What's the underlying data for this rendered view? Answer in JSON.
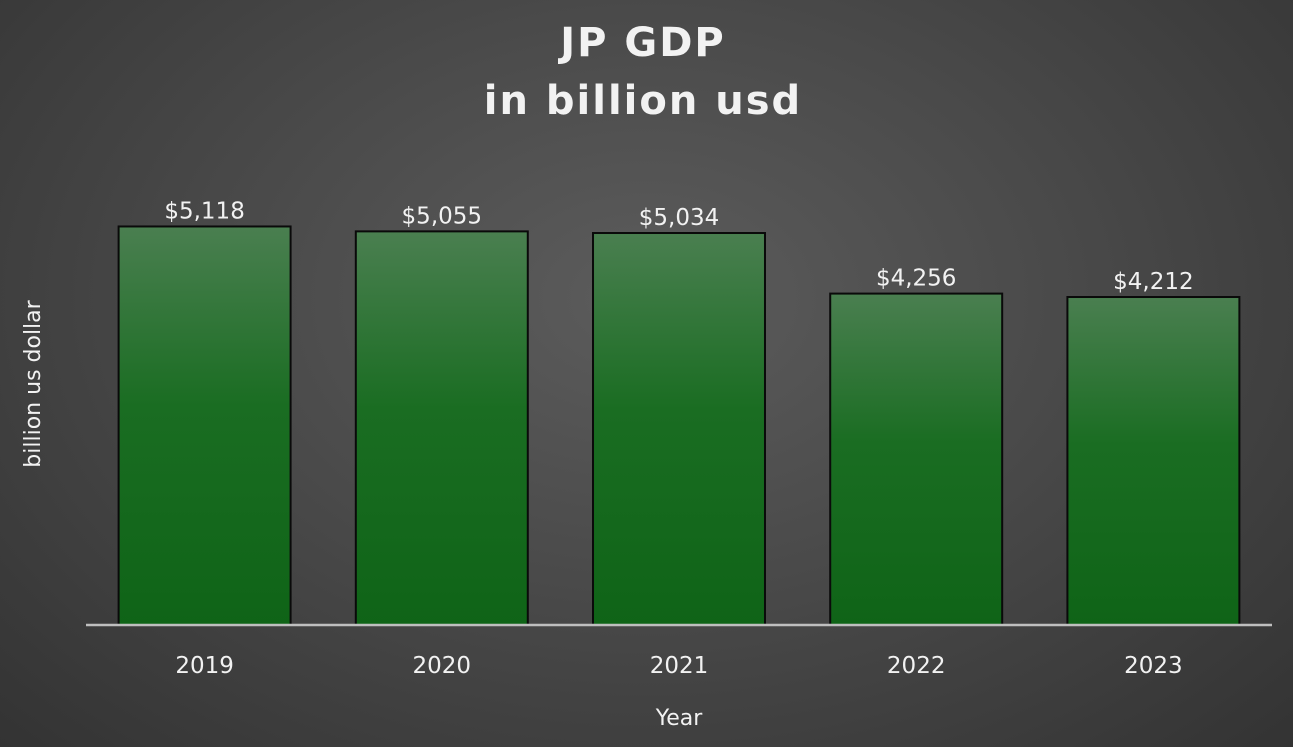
{
  "chart_data": {
    "type": "bar",
    "title": "JP GDP",
    "subtitle": "in billion usd",
    "xlabel": "Year",
    "ylabel": "billion us dollar",
    "categories": [
      "2019",
      "2020",
      "2021",
      "2022",
      "2023"
    ],
    "values": [
      5118,
      5055,
      5034,
      4256,
      4212
    ],
    "data_labels": [
      "$5,118",
      "$5,055",
      "$5,034",
      "$4,256",
      "$4,212"
    ],
    "ylim": [
      0,
      6100
    ],
    "grid": false,
    "legend": "none",
    "colors": {
      "bar_top": "#4a7f50",
      "bar_bottom": "#0f6417",
      "bar_border": "#0a0a0a",
      "axis_line": "#bfbfbf",
      "text": "#f2f2f2"
    }
  }
}
